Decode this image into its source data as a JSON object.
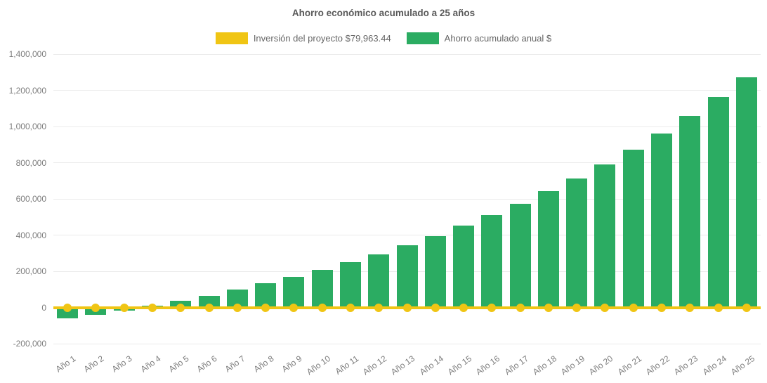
{
  "chart_data": {
    "type": "bar",
    "title": "Ahorro económico acumulado a 25 años",
    "categories": [
      "Año 1",
      "Año 2",
      "Año 3",
      "Año 4",
      "Año 5",
      "Año 6",
      "Año 7",
      "Año 8",
      "Año 9",
      "Año 10",
      "Año 11",
      "Año 12",
      "Año 13",
      "Año 14",
      "Año 15",
      "Año 16",
      "Año 17",
      "Año 18",
      "Año 19",
      "Año 20",
      "Año 21",
      "Año 22",
      "Año 23",
      "Año 24",
      "Año 25"
    ],
    "series": [
      {
        "name": "Inversión del proyecto $79,963.44",
        "type": "line",
        "color": "#f0c514",
        "values": [
          0,
          0,
          0,
          0,
          0,
          0,
          0,
          0,
          0,
          0,
          0,
          0,
          0,
          0,
          0,
          0,
          0,
          0,
          0,
          0,
          0,
          0,
          0,
          0,
          0
        ]
      },
      {
        "name": "Ahorro acumulado anual $",
        "type": "bar",
        "color": "#2bac62",
        "values": [
          -62000,
          -40000,
          -16000,
          10000,
          38000,
          66000,
          98000,
          134000,
          168000,
          208000,
          249000,
          295000,
          344000,
          394000,
          452000,
          510000,
          573000,
          641000,
          714000,
          789000,
          871000,
          960000,
          1058000,
          1162000,
          1270000
        ]
      }
    ],
    "ylim": [
      -200000,
      1400000
    ],
    "y_ticks": [
      {
        "value": 1400000,
        "label": "1,400,000"
      },
      {
        "value": 1200000,
        "label": "1,200,000"
      },
      {
        "value": 1000000,
        "label": "1,000,000"
      },
      {
        "value": 800000,
        "label": "800,000"
      },
      {
        "value": 600000,
        "label": "600,000"
      },
      {
        "value": 400000,
        "label": "400,000"
      },
      {
        "value": 200000,
        "label": "200,000"
      },
      {
        "value": 0,
        "label": "0"
      },
      {
        "value": -200000,
        "label": "-200,000"
      }
    ],
    "grid": true,
    "legend_position": "top",
    "xlabel": "",
    "ylabel": ""
  },
  "colors": {
    "bar_green": "#2bac62",
    "line_yellow": "#f0c514",
    "title_text": "#595959",
    "tick_text": "#7d7d7d",
    "legend_text": "#666666"
  }
}
